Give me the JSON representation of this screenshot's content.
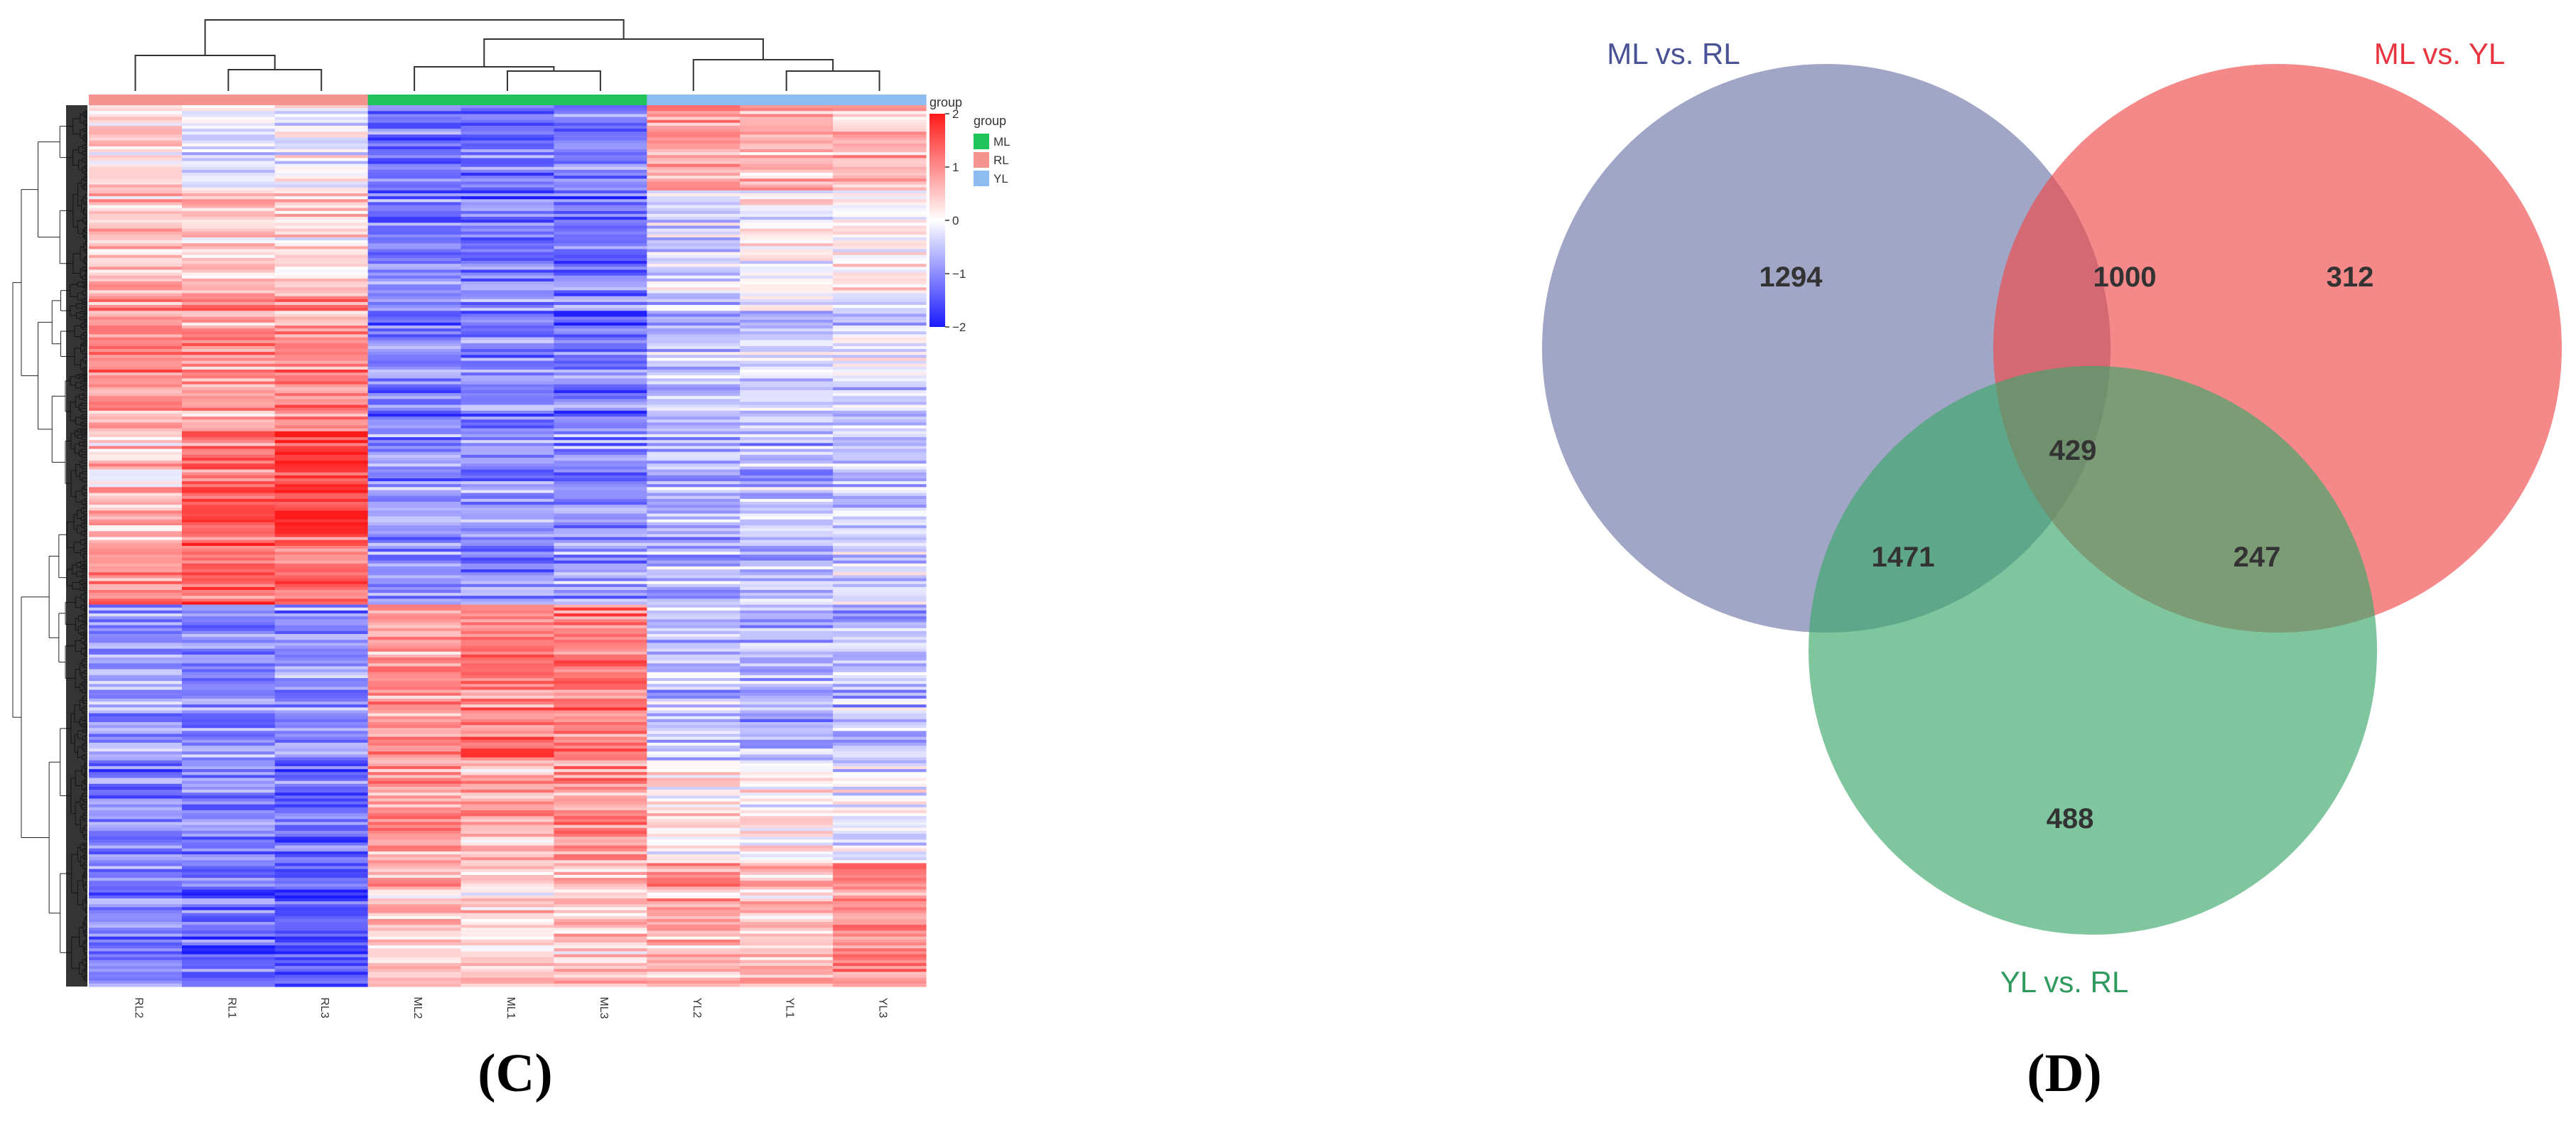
{
  "chart_data": [
    {
      "type": "heatmap",
      "panel_label": "(C)",
      "samples": [
        "RL2",
        "RL1",
        "RL3",
        "ML2",
        "ML1",
        "ML3",
        "YL2",
        "YL1",
        "YL3"
      ],
      "sample_groups": [
        "RL",
        "RL",
        "RL",
        "ML",
        "ML",
        "ML",
        "YL",
        "YL",
        "YL"
      ],
      "legend": {
        "title": "group",
        "groups": [
          {
            "name": "ML",
            "color": "#1fc45a"
          },
          {
            "name": "RL",
            "color": "#f4938f"
          },
          {
            "name": "YL",
            "color": "#8cbcf0"
          }
        ]
      },
      "colorbar": {
        "title": "group",
        "ticks": [
          "2",
          "1",
          "0",
          "−1",
          "−2"
        ],
        "tick_values": [
          2,
          1,
          0,
          -1,
          -2
        ],
        "range": [
          -2,
          2
        ],
        "low_color": "#1a1aff",
        "mid_color": "#ffffff",
        "high_color": "#ff1a1a"
      },
      "row_clusters": {
        "description": "approximate mean z-score per sample for successive blocks of genes (top to bottom)",
        "blocks": [
          {
            "weight": 10,
            "means": [
              0.3,
              -0.2,
              -0.1,
              -1.2,
              -1.3,
              -1.2,
              0.8,
              0.6,
              0.5
            ]
          },
          {
            "weight": 12,
            "means": [
              0.5,
              0.4,
              0.3,
              -1.2,
              -1.2,
              -1.3,
              -0.4,
              0.0,
              0.1
            ]
          },
          {
            "weight": 16,
            "means": [
              0.9,
              0.9,
              1.0,
              -1.1,
              -1.1,
              -1.2,
              -0.6,
              -0.4,
              -0.3
            ]
          },
          {
            "weight": 12,
            "means": [
              0.5,
              1.2,
              1.8,
              -1.0,
              -1.0,
              -1.0,
              -0.8,
              -0.6,
              -0.5
            ]
          },
          {
            "weight": 8,
            "means": [
              0.9,
              1.4,
              1.3,
              -1.0,
              -1.0,
              -0.9,
              -0.7,
              -0.6,
              -0.3
            ]
          },
          {
            "weight": 18,
            "means": [
              -0.9,
              -1.0,
              -1.0,
              0.9,
              1.1,
              1.2,
              -0.6,
              -0.7,
              -0.6
            ]
          },
          {
            "weight": 12,
            "means": [
              -1.1,
              -1.2,
              -1.3,
              0.9,
              0.6,
              0.9,
              0.2,
              0.0,
              -0.2
            ]
          },
          {
            "weight": 14,
            "means": [
              -1.2,
              -1.4,
              -1.6,
              0.5,
              0.3,
              0.4,
              0.7,
              0.5,
              0.9
            ]
          }
        ]
      },
      "dendrogram": "hierarchical clustering of rows and columns"
    },
    {
      "type": "venn",
      "panel_label": "(D)",
      "sets": [
        {
          "name": "ML vs. RL",
          "color": "#6e74a8",
          "label_color": "#4a5296"
        },
        {
          "name": "ML vs. YL",
          "color": "#f04848",
          "label_color": "#e8353f"
        },
        {
          "name": "YL vs. RL",
          "color": "#3aa86c",
          "label_color": "#2f9a5e"
        }
      ],
      "regions": [
        {
          "sets": [
            "ML vs. RL"
          ],
          "count": "1294"
        },
        {
          "sets": [
            "ML vs. YL"
          ],
          "count": "312"
        },
        {
          "sets": [
            "YL vs. RL"
          ],
          "count": "488"
        },
        {
          "sets": [
            "ML vs. RL",
            "ML vs. YL"
          ],
          "count": "1000"
        },
        {
          "sets": [
            "ML vs. RL",
            "YL vs. RL"
          ],
          "count": "1471"
        },
        {
          "sets": [
            "ML vs. YL",
            "YL vs. RL"
          ],
          "count": "247"
        },
        {
          "sets": [
            "ML vs. RL",
            "ML vs. YL",
            "YL vs. RL"
          ],
          "count": "429"
        }
      ]
    }
  ]
}
